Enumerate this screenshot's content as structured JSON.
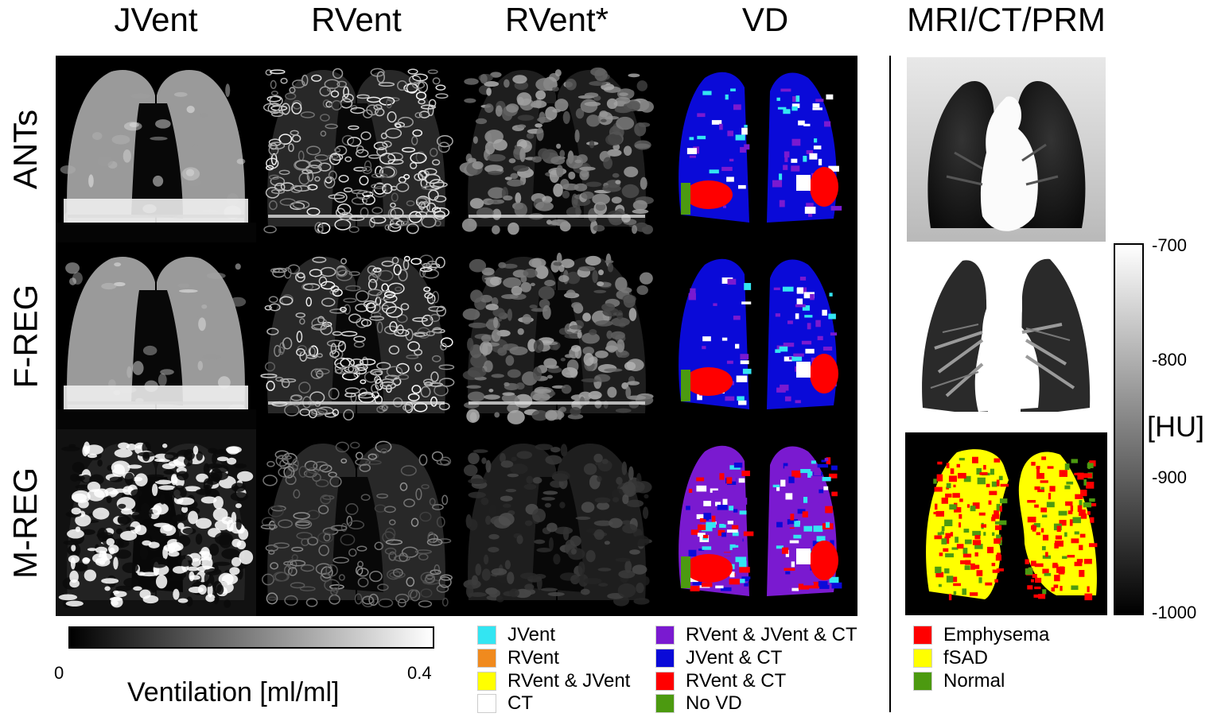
{
  "columns": [
    "JVent",
    "RVent",
    "RVent*",
    "VD",
    "MRI/CT/PRM"
  ],
  "rows": [
    "ANTs",
    "F-REG",
    "M-REG"
  ],
  "ventilation_colorbar": {
    "label": "Ventilation [ml/ml]",
    "min_label": "0",
    "max_label": "0.4"
  },
  "hu_colorbar": {
    "label": "[HU]",
    "ticks": [
      "-700",
      "-800",
      "-900",
      "-1000"
    ]
  },
  "vd_legend": [
    {
      "label": "JVent",
      "color": "#33e5f2"
    },
    {
      "label": "RVent",
      "color": "#f08a1e"
    },
    {
      "label": "RVent & JVent",
      "color": "#ffff00"
    },
    {
      "label": "CT",
      "color": "#ffffff"
    },
    {
      "label": "RVent & JVent & CT",
      "color": "#7a1ad0"
    },
    {
      "label": "JVent & CT",
      "color": "#0a0ad8"
    },
    {
      "label": "RVent & CT",
      "color": "#ff0000"
    },
    {
      "label": "No VD",
      "color": "#4c9a10"
    }
  ],
  "prm_legend": [
    {
      "label": "Emphysema",
      "color": "#ff0000"
    },
    {
      "label": "fSAD",
      "color": "#ffff00"
    },
    {
      "label": "Normal",
      "color": "#4c9a10"
    }
  ]
}
